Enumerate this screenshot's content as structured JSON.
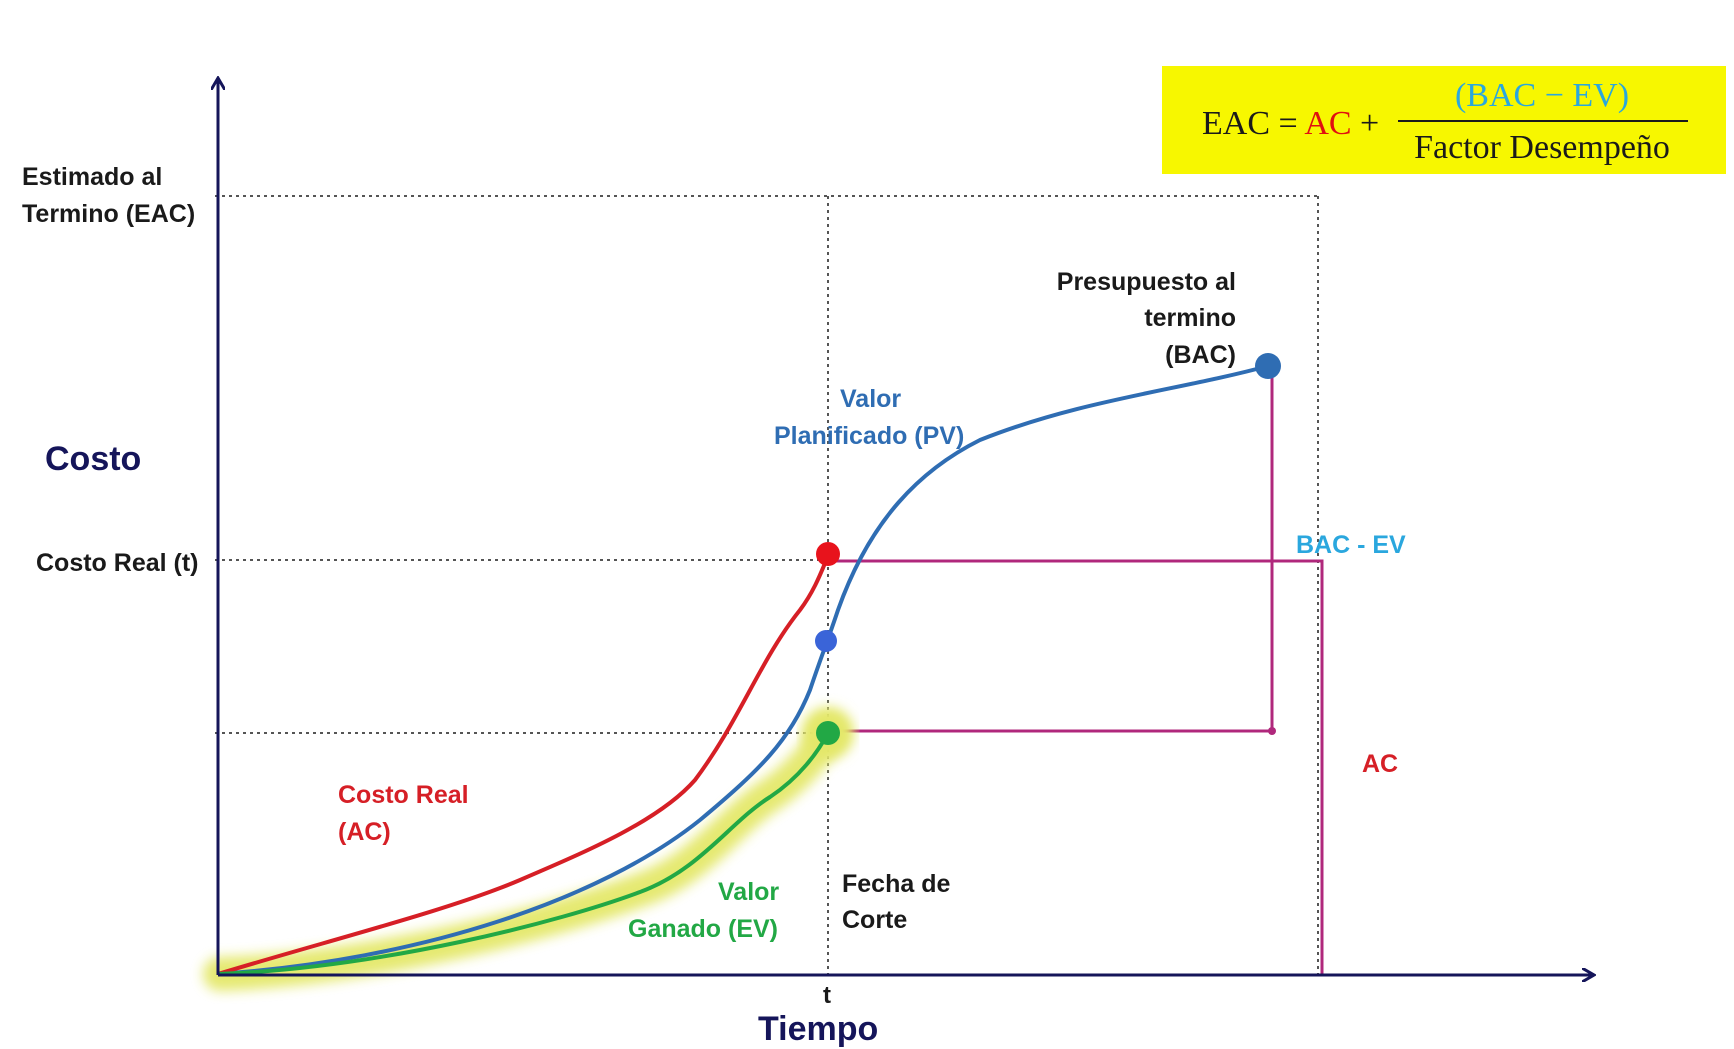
{
  "axes": {
    "y_title": "Costo",
    "x_title": "Tiempo",
    "x_tick": "t"
  },
  "y_levels": {
    "eac_label_line1": "Estimado al",
    "eac_label_line2": "Termino  (EAC)",
    "ac_label": "Costo Real (t)"
  },
  "formula": {
    "lhs": "EAC = ",
    "ac": "AC",
    "plus": " + ",
    "numerator": "(BAC − EV)",
    "denominator": "Factor Desempeño"
  },
  "labels": {
    "bac_line1": "Presupuesto al",
    "bac_line2": "termino",
    "bac_line3": "(BAC)",
    "pv_line1": "Valor",
    "pv_line2": "Planificado (PV)",
    "bac_ev": "BAC - EV",
    "ac_bracket": "AC",
    "ac_curve_line1": "Costo Real",
    "ac_curve_line2": "(AC)",
    "ev_line1": "Valor",
    "ev_line2": "Ganado (EV)",
    "cutoff_line1": "Fecha de",
    "cutoff_line2": "Corte"
  },
  "colors": {
    "axis": "#15155a",
    "pv": "#2f6db3",
    "ac": "#d61f26",
    "ev": "#22a845",
    "ev_highlight": "#e4e86a",
    "bracket": "#b0287c",
    "bac_ev_text": "#2aa7de",
    "formula_bg": "#f7f700",
    "formula_num": "#2aa7de",
    "formula_ac": "#e01010"
  }
}
